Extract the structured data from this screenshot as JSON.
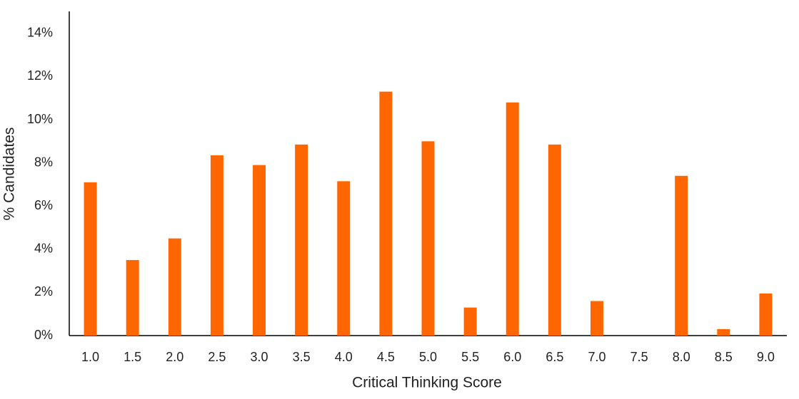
{
  "chart_data": {
    "type": "bar",
    "xlabel": "Critical Thinking Score",
    "ylabel": "% Candidates",
    "categories": [
      "1.0",
      "1.5",
      "2.0",
      "2.5",
      "3.0",
      "3.5",
      "4.0",
      "4.5",
      "5.0",
      "5.5",
      "6.0",
      "6.5",
      "7.0",
      "7.5",
      "8.0",
      "8.5",
      "9.0"
    ],
    "values": [
      7.1,
      3.5,
      4.5,
      8.35,
      7.9,
      8.85,
      7.15,
      11.3,
      9.0,
      1.3,
      10.8,
      8.85,
      1.6,
      0,
      7.4,
      0.3,
      1.95
    ],
    "color": "#ff6600",
    "ylim": [
      0,
      15
    ],
    "yticks": [
      {
        "value": 0,
        "label": "0%"
      },
      {
        "value": 2,
        "label": "2%"
      },
      {
        "value": 4,
        "label": "4%"
      },
      {
        "value": 6,
        "label": "6%"
      },
      {
        "value": 8,
        "label": "8%"
      },
      {
        "value": 10,
        "label": "10%"
      },
      {
        "value": 12,
        "label": "12%"
      },
      {
        "value": 14,
        "label": "14%"
      }
    ],
    "grid": false
  }
}
